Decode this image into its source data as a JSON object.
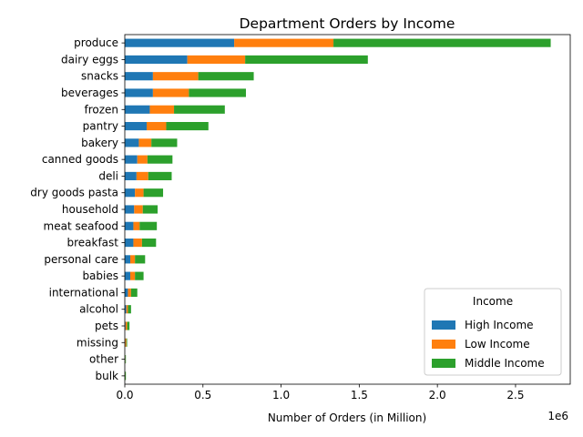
{
  "chart_data": {
    "type": "bar",
    "orientation": "horizontal",
    "stacked": true,
    "title": "Department Orders by Income",
    "xlabel": "Number of Orders (in Million)",
    "ylabel": "",
    "x_offset_label": "1e6",
    "xlim": [
      0,
      2850000
    ],
    "x_ticks": [
      0,
      500000,
      1000000,
      1500000,
      2000000,
      2500000
    ],
    "x_tick_labels": [
      "0.0",
      "0.5",
      "1.0",
      "1.5",
      "2.0",
      "2.5"
    ],
    "grid": false,
    "legend": {
      "title": "Income",
      "placement": "lower right"
    },
    "categories": [
      "produce",
      "dairy eggs",
      "snacks",
      "beverages",
      "frozen",
      "pantry",
      "bakery",
      "canned goods",
      "deli",
      "dry goods pasta",
      "household",
      "meat seafood",
      "breakfast",
      "personal care",
      "babies",
      "international",
      "alcohol",
      "pets",
      "missing",
      "other",
      "bulk"
    ],
    "series": [
      {
        "name": "High Income",
        "color": "#1f77b4",
        "values": [
          700000,
          400000,
          180000,
          180000,
          160000,
          140000,
          90000,
          80000,
          75000,
          65000,
          60000,
          55000,
          55000,
          35000,
          35000,
          20000,
          10000,
          5000,
          3000,
          2000,
          1000
        ]
      },
      {
        "name": "Low Income",
        "color": "#ff7f0e",
        "values": [
          635000,
          370000,
          290000,
          230000,
          155000,
          125000,
          80000,
          65000,
          75000,
          55000,
          55000,
          40000,
          55000,
          30000,
          30000,
          20000,
          10000,
          10000,
          7000,
          2000,
          2000
        ]
      },
      {
        "name": "Middle Income",
        "color": "#2ca02c",
        "values": [
          1390000,
          785000,
          355000,
          365000,
          325000,
          270000,
          165000,
          160000,
          150000,
          125000,
          95000,
          110000,
          90000,
          65000,
          55000,
          40000,
          20000,
          15000,
          5000,
          3000,
          4000
        ]
      }
    ]
  }
}
